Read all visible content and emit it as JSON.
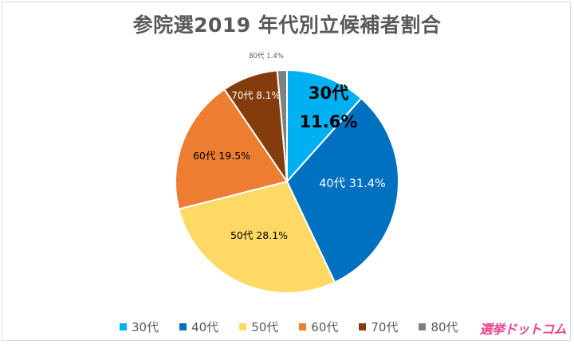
{
  "chart_data": {
    "type": "pie",
    "title": "参院選2019 年代別立候補者割合",
    "slices": [
      {
        "label": "30代",
        "value": 11.6,
        "color": "#00b0f0",
        "display": "30代\n11.6%"
      },
      {
        "label": "40代",
        "value": 31.4,
        "color": "#0070c0",
        "display": "40代 31.4%"
      },
      {
        "label": "50代",
        "value": 28.1,
        "color": "#ffd966",
        "display": "50代 28.1%"
      },
      {
        "label": "60代",
        "value": 19.5,
        "color": "#ed7d31",
        "display": "60代 19.5%"
      },
      {
        "label": "70代",
        "value": 8.1,
        "color": "#843c0c",
        "display": "70代 8.1%"
      },
      {
        "label": "80代",
        "value": 1.4,
        "color": "#7f7f7f",
        "display": "80代 1.4%"
      }
    ],
    "legend": {
      "placement": "bottom"
    }
  },
  "logo": {
    "text": "選挙ドットコム",
    "color": "#e8468f"
  }
}
